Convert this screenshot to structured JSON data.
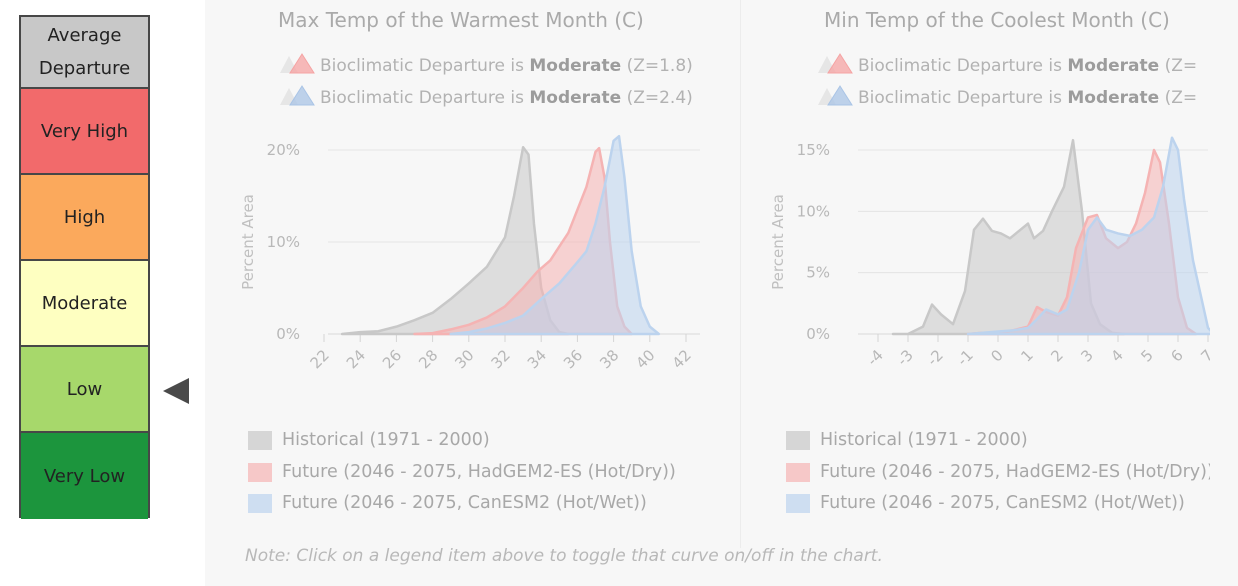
{
  "scale": {
    "header": "Average Departure",
    "levels": [
      {
        "label": "Very High",
        "color": "#f26a6b"
      },
      {
        "label": "High",
        "color": "#fba95c"
      },
      {
        "label": "Moderate",
        "color": "#feffc1"
      },
      {
        "label": "Low",
        "color": "#a7d86b"
      },
      {
        "label": "Very Low",
        "color": "#1c953d"
      }
    ],
    "selected": "Low"
  },
  "note": "Note: Click on a legend item above to toggle that curve on/off in the chart.",
  "series_colors": {
    "historical": "#c8c8c8",
    "hadgem": "#f5b3b3",
    "canesm": "#bcd3ee"
  },
  "chart_data": [
    {
      "type": "area",
      "title": "Max Temp of the Warmest Month (C)",
      "ylabel": "Percent Area",
      "xlim": [
        22,
        42
      ],
      "ylim": [
        0,
        20
      ],
      "xticks": [
        "22",
        "24",
        "26",
        "28",
        "30",
        "32",
        "34",
        "36",
        "38",
        "40",
        "42"
      ],
      "yticks": [
        "0%",
        "10%",
        "20%"
      ],
      "departures": [
        {
          "prefix": "Bioclimatic Departure is ",
          "level": "Moderate",
          "z": "(Z=1.8)",
          "color": "#f5a3a3"
        },
        {
          "prefix": "Bioclimatic Departure is ",
          "level": "Moderate",
          "z": "(Z=2.4)",
          "color": "#a9c4e6"
        }
      ],
      "series": [
        {
          "name": "Historical (1971 - 2000)",
          "key": "historical",
          "x": [
            23,
            24,
            25,
            26,
            27,
            28,
            29,
            30,
            31,
            32,
            32.5,
            33,
            33.3,
            33.6,
            34,
            34.5,
            35,
            35.5
          ],
          "y": [
            0,
            0.2,
            0.3,
            0.8,
            1.5,
            2.3,
            3.8,
            5.5,
            7.3,
            10.5,
            15,
            20.3,
            19.5,
            12,
            5,
            1.5,
            0.2,
            0
          ]
        },
        {
          "name": "Future (2046 - 2075, HadGEM2-ES (Hot/Dry))",
          "key": "hadgem",
          "x": [
            27,
            28,
            29,
            30,
            31,
            32,
            33,
            33.8,
            34.5,
            35,
            35.5,
            36,
            36.5,
            37,
            37.2,
            37.5,
            37.8,
            38.2,
            38.6,
            39
          ],
          "y": [
            0,
            0.1,
            0.5,
            1,
            1.8,
            3,
            5,
            6.8,
            8,
            9.5,
            11,
            13.5,
            16,
            19.8,
            20.2,
            17,
            10,
            3,
            0.8,
            0
          ]
        },
        {
          "name": "Future (2046 - 2075, CanESM2 (Hot/Wet))",
          "key": "canesm",
          "x": [
            29,
            30,
            31,
            32,
            33,
            34,
            35,
            36,
            36.5,
            37,
            37.5,
            37.8,
            38,
            38.3,
            38.6,
            39,
            39.5,
            40,
            40.5
          ],
          "y": [
            0,
            0.2,
            0.6,
            1.2,
            2,
            3.8,
            5.5,
            7.8,
            9,
            12,
            16,
            19,
            21,
            21.5,
            17,
            9,
            3,
            0.8,
            0
          ]
        }
      ]
    },
    {
      "type": "area",
      "title": "Min Temp of the Coolest Month (C)",
      "ylabel": "Percent Area",
      "xlim": [
        -4,
        7
      ],
      "ylim": [
        0,
        15
      ],
      "xticks": [
        "-4",
        "-3",
        "-2",
        "-1",
        "0",
        "1",
        "2",
        "3",
        "4",
        "5",
        "6",
        "7"
      ],
      "yticks": [
        "0%",
        "5%",
        "10%",
        "15%"
      ],
      "departures": [
        {
          "prefix": "Bioclimatic Departure is ",
          "level": "Moderate",
          "z": "(Z=",
          "color": "#f5a3a3"
        },
        {
          "prefix": "Bioclimatic Departure is ",
          "level": "Moderate",
          "z": "(Z=",
          "color": "#a9c4e6"
        }
      ],
      "series": [
        {
          "name": "Historical (1971 - 2000)",
          "key": "historical",
          "x": [
            -3.5,
            -3,
            -2.5,
            -2.2,
            -1.9,
            -1.5,
            -1.1,
            -0.8,
            -0.5,
            -0.2,
            0.1,
            0.4,
            0.7,
            1,
            1.2,
            1.5,
            1.8,
            2.2,
            2.5,
            2.8,
            3.1,
            3.4,
            3.8,
            4.2
          ],
          "y": [
            0,
            0,
            0.6,
            2.4,
            1.6,
            0.8,
            3.5,
            8.5,
            9.4,
            8.4,
            8.2,
            7.8,
            8.4,
            9,
            7.8,
            8.4,
            10,
            12,
            15.8,
            10,
            2.5,
            0.8,
            0.1,
            0
          ]
        },
        {
          "name": "Future (2046 - 2075, HadGEM2-ES (Hot/Dry))",
          "key": "hadgem",
          "x": [
            -1,
            -0.5,
            0,
            0.5,
            1,
            1.3,
            1.6,
            2,
            2.3,
            2.6,
            3,
            3.3,
            3.6,
            4,
            4.3,
            4.6,
            4.9,
            5.2,
            5.4,
            5.7,
            6,
            6.3,
            6.6
          ],
          "y": [
            0,
            0.1,
            0.1,
            0.3,
            0.6,
            2.2,
            1.8,
            1.5,
            3,
            7,
            9.5,
            9.7,
            7.8,
            7,
            7.5,
            9,
            11.5,
            15,
            14,
            9,
            3,
            0.5,
            0
          ]
        },
        {
          "name": "Future (2046 - 2075, CanESM2 (Hot/Wet))",
          "key": "canesm",
          "x": [
            -1,
            -0.5,
            0,
            0.5,
            1,
            1.3,
            1.6,
            2,
            2.3,
            2.7,
            3,
            3.3,
            3.6,
            4,
            4.4,
            4.8,
            5.2,
            5.5,
            5.8,
            6,
            6.2,
            6.5,
            7,
            7.2
          ],
          "y": [
            0,
            0.1,
            0.2,
            0.3,
            0.5,
            1.2,
            2,
            1.6,
            2,
            5,
            8.5,
            9.5,
            8.5,
            8.2,
            8,
            8.5,
            9.5,
            12,
            16,
            15,
            11,
            6,
            0.5,
            0
          ]
        }
      ]
    }
  ]
}
